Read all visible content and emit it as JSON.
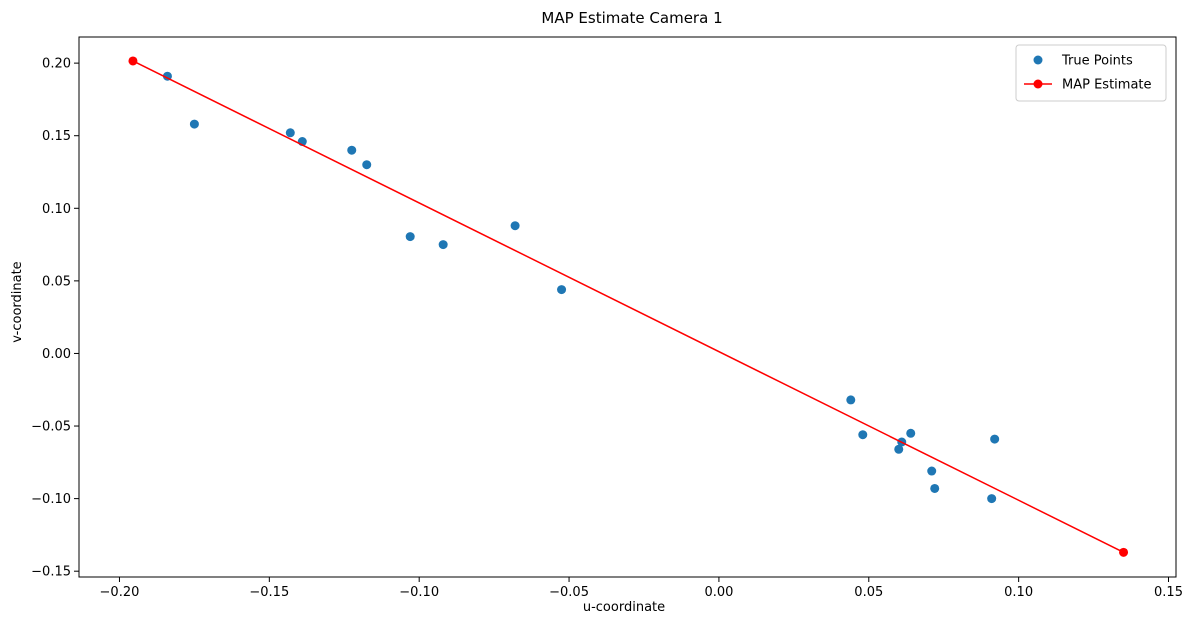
{
  "chart_data": {
    "type": "scatter",
    "title": "MAP Estimate Camera 1",
    "xlabel": "u-coordinate",
    "ylabel": "v-coordinate",
    "xlim": [
      -0.2135,
      0.1525
    ],
    "ylim": [
      -0.154,
      0.218
    ],
    "xticks": [
      -0.2,
      -0.15,
      -0.1,
      -0.05,
      0.0,
      0.05,
      0.1,
      0.15
    ],
    "xtick_labels": [
      "−0.20",
      "−0.15",
      "−0.10",
      "−0.05",
      "0.00",
      "0.05",
      "0.10",
      "0.15"
    ],
    "yticks": [
      -0.15,
      -0.1,
      -0.05,
      0.0,
      0.05,
      0.1,
      0.15,
      0.2
    ],
    "ytick_labels": [
      "−0.15",
      "−0.10",
      "−0.05",
      "0.00",
      "0.05",
      "0.10",
      "0.15",
      "0.20"
    ],
    "grid": false,
    "legend_position": "top-right",
    "series": [
      {
        "name": "True Points",
        "kind": "scatter",
        "color": "#1f77b4",
        "points": [
          [
            -0.184,
            0.191
          ],
          [
            -0.175,
            0.158
          ],
          [
            -0.143,
            0.152
          ],
          [
            -0.139,
            0.146
          ],
          [
            -0.1225,
            0.14
          ],
          [
            -0.1175,
            0.13
          ],
          [
            -0.103,
            0.0805
          ],
          [
            -0.092,
            0.075
          ],
          [
            -0.068,
            0.088
          ],
          [
            -0.0525,
            0.044
          ],
          [
            0.044,
            -0.032
          ],
          [
            0.048,
            -0.056
          ],
          [
            0.06,
            -0.066
          ],
          [
            0.061,
            -0.061
          ],
          [
            0.064,
            -0.055
          ],
          [
            0.071,
            -0.081
          ],
          [
            0.072,
            -0.093
          ],
          [
            0.091,
            -0.1
          ],
          [
            0.092,
            -0.059
          ]
        ]
      },
      {
        "name": "MAP Estimate",
        "kind": "line",
        "color": "#ff0000",
        "points": [
          [
            -0.1955,
            0.2015
          ],
          [
            0.135,
            -0.137
          ]
        ]
      }
    ]
  }
}
